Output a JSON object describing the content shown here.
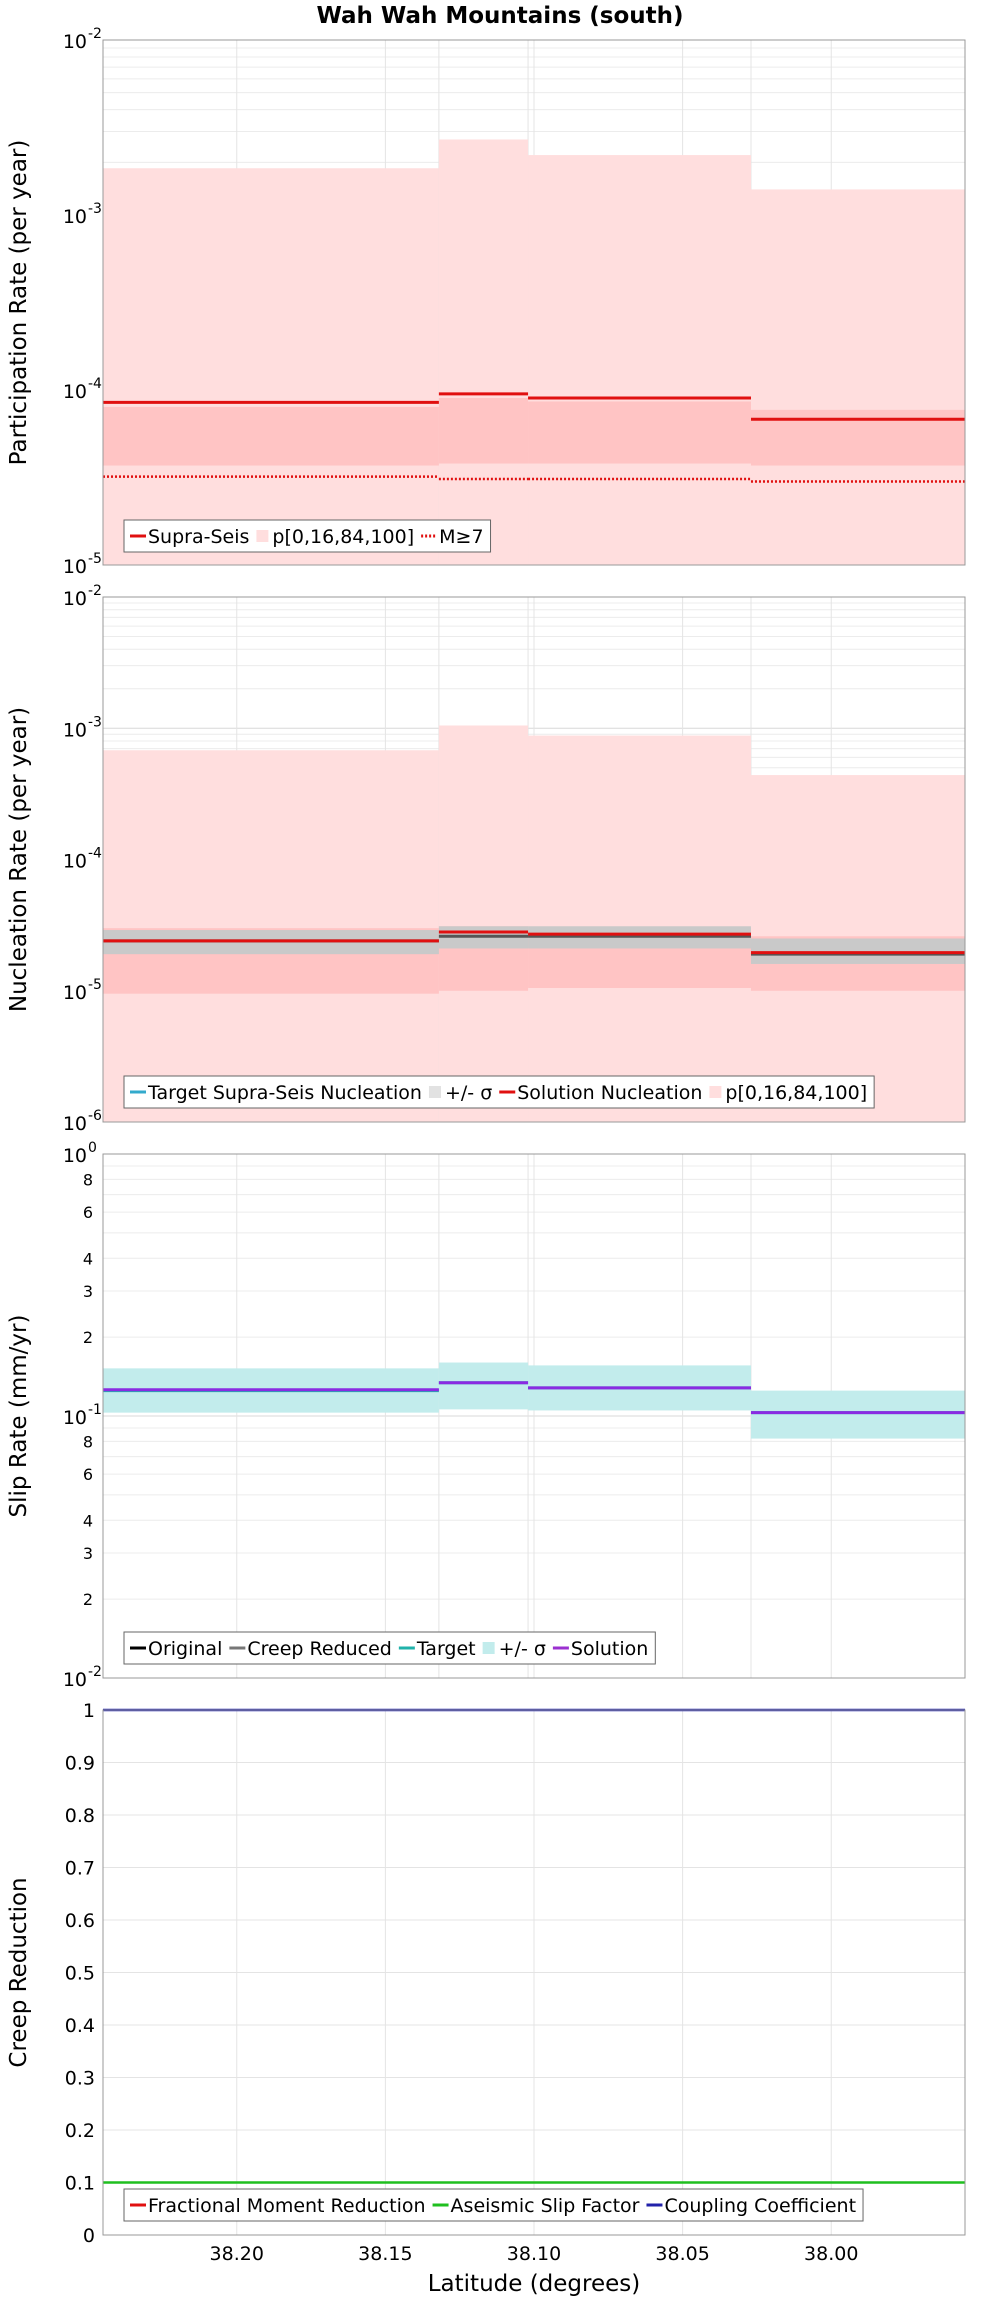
{
  "figure": {
    "title": "Wah Wah Mountains (south)",
    "xlabel": "Latitude (degrees)"
  },
  "chart_data": [
    {
      "type": "line",
      "ylabel": "Participation Rate (per year)",
      "yscale": "log",
      "ylim": [
        1e-05,
        0.01
      ],
      "y_ticks": [
        1e-05,
        0.0001,
        0.001,
        0.01
      ],
      "y_tick_labels": [
        {
          "base": "10",
          "exp": "-5"
        },
        {
          "base": "10",
          "exp": "-4"
        },
        {
          "base": "10",
          "exp": "-3"
        },
        {
          "base": "10",
          "exp": "-2"
        }
      ],
      "xlim": [
        38.245,
        37.955
      ],
      "x_ticks": [
        38.2,
        38.15,
        38.1,
        38.05,
        38.0
      ],
      "x_tick_labels": [
        "38.20",
        "38.15",
        "38.10",
        "38.05",
        "38.00"
      ],
      "x_bins": [
        [
          38.245,
          38.132
        ],
        [
          38.132,
          38.102
        ],
        [
          38.102,
          38.027
        ],
        [
          38.027,
          37.955
        ]
      ],
      "bands": [
        {
          "name": "p[0,16,84,100]",
          "color": "#ffdede",
          "lower": [
            1e-05,
            1e-05,
            1e-05,
            1e-05
          ],
          "upper": [
            0.00185,
            0.0027,
            0.0022,
            0.0014
          ]
        },
        {
          "color": "#ffc4c4",
          "lower": [
            3.7e-05,
            3.8e-05,
            3.8e-05,
            3.7e-05
          ],
          "upper": [
            8e-05,
            9e-05,
            8.6e-05,
            7.7e-05
          ]
        }
      ],
      "series": [
        {
          "name": "Supra-Seis",
          "color": "#e01010",
          "style": "solid",
          "values": [
            8.5e-05,
            9.5e-05,
            9e-05,
            6.8e-05
          ]
        },
        {
          "name": "M≥7",
          "color": "#e01010",
          "style": "dotted",
          "values": [
            3.2e-05,
            3.1e-05,
            3.1e-05,
            3e-05
          ]
        }
      ],
      "legend": [
        {
          "label": "Supra-Seis",
          "kind": "line",
          "color": "#e01010"
        },
        {
          "label": "p[0,16,84,100]",
          "kind": "band",
          "color": "#ffdede"
        },
        {
          "label": "M≥7",
          "kind": "dotted",
          "color": "#e01010"
        }
      ],
      "legend_position": "bottom-left",
      "grid": true
    },
    {
      "type": "line",
      "ylabel": "Nucleation Rate (per year)",
      "yscale": "log",
      "ylim": [
        1e-06,
        0.01
      ],
      "y_ticks": [
        1e-06,
        1e-05,
        0.0001,
        0.001,
        0.01
      ],
      "y_tick_labels": [
        {
          "base": "10",
          "exp": "-6"
        },
        {
          "base": "10",
          "exp": "-5"
        },
        {
          "base": "10",
          "exp": "-4"
        },
        {
          "base": "10",
          "exp": "-3"
        },
        {
          "base": "10",
          "exp": "-2"
        }
      ],
      "xlim": [
        38.245,
        37.955
      ],
      "x_bins": [
        [
          38.245,
          38.132
        ],
        [
          38.132,
          38.102
        ],
        [
          38.102,
          38.027
        ],
        [
          38.027,
          37.955
        ]
      ],
      "bands": [
        {
          "name": "p[0,16,84,100]",
          "color": "#ffdede",
          "lower": [
            1e-06,
            1e-06,
            1e-06,
            1e-06
          ],
          "upper": [
            0.00068,
            0.00105,
            0.00088,
            0.00044
          ]
        },
        {
          "color": "#ffc4c4",
          "lower": [
            9.5e-06,
            1e-05,
            1.05e-05,
            1e-05
          ],
          "upper": [
            3e-05,
            3.1e-05,
            3e-05,
            2.6e-05
          ]
        },
        {
          "name": "+/- σ",
          "color": "#c9c9c9",
          "lower": [
            1.9e-05,
            2.1e-05,
            2.1e-05,
            1.6e-05
          ],
          "upper": [
            2.9e-05,
            3.1e-05,
            3.1e-05,
            2.5e-05
          ]
        }
      ],
      "series": [
        {
          "name": "Target Supra-Seis Nucleation",
          "color": "#555555",
          "style": "solid",
          "values": [
            2.4e-05,
            2.6e-05,
            2.6e-05,
            1.9e-05
          ]
        },
        {
          "name": "Solution Nucleation",
          "color": "#e01010",
          "style": "solid",
          "values": [
            2.4e-05,
            2.8e-05,
            2.7e-05,
            1.95e-05
          ]
        }
      ],
      "legend": [
        {
          "label": "Target Supra-Seis Nucleation",
          "kind": "line",
          "color": "#33aacc"
        },
        {
          "label": "+/- σ",
          "kind": "band",
          "color": "#e2e2e2"
        },
        {
          "label": "Solution Nucleation",
          "kind": "line",
          "color": "#e01010"
        },
        {
          "label": "p[0,16,84,100]",
          "kind": "band",
          "color": "#ffdede"
        }
      ],
      "legend_position": "bottom-left",
      "grid": true
    },
    {
      "type": "line",
      "ylabel": "Slip Rate (mm/yr)",
      "yscale": "log",
      "ylim": [
        0.01,
        1
      ],
      "y_ticks": [
        0.01,
        0.1,
        1
      ],
      "y_tick_labels": [
        {
          "base": "10",
          "exp": "-2"
        },
        {
          "base": "10",
          "exp": "-1"
        },
        {
          "base": "10",
          "exp": "0"
        }
      ],
      "y_minor_ticks": [
        0.02,
        0.03,
        0.04,
        0.06,
        0.08,
        0.2,
        0.3,
        0.4,
        0.6,
        0.8
      ],
      "y_minor_labels": [
        "2",
        "3",
        "4",
        "6",
        "8",
        "2",
        "3",
        "4",
        "6",
        "8"
      ],
      "xlim": [
        38.245,
        37.955
      ],
      "x_bins": [
        [
          38.245,
          38.132
        ],
        [
          38.132,
          38.102
        ],
        [
          38.102,
          38.027
        ],
        [
          38.027,
          37.955
        ]
      ],
      "bands": [
        {
          "name": "+/- σ",
          "color": "#c2ecec",
          "lower": [
            0.103,
            0.106,
            0.105,
            0.082
          ],
          "upper": [
            0.152,
            0.16,
            0.156,
            0.125
          ]
        }
      ],
      "series": [
        {
          "name": "Target",
          "color": "#20b2aa",
          "style": "solid",
          "values": [
            0.125,
            0.134,
            0.128,
            0.103
          ]
        },
        {
          "name": "Solution",
          "color": "#8a2be2",
          "style": "solid",
          "values": [
            0.126,
            0.134,
            0.128,
            0.103
          ]
        }
      ],
      "legend": [
        {
          "label": "Original",
          "kind": "line",
          "color": "#000000"
        },
        {
          "label": "Creep Reduced",
          "kind": "line",
          "color": "#777777"
        },
        {
          "label": "Target",
          "kind": "line",
          "color": "#20b2aa"
        },
        {
          "label": "+/- σ",
          "kind": "band",
          "color": "#c2ecec"
        },
        {
          "label": "Solution",
          "kind": "line",
          "color": "#9b30d0"
        }
      ],
      "legend_position": "bottom-left",
      "grid": true
    },
    {
      "type": "line",
      "ylabel": "Creep Reduction",
      "yscale": "linear",
      "ylim": [
        0,
        1
      ],
      "y_ticks": [
        0,
        0.1,
        0.2,
        0.3,
        0.4,
        0.5,
        0.6,
        0.7,
        0.8,
        0.9,
        1
      ],
      "y_tick_labels": [
        "0",
        "0.1",
        "0.2",
        "0.3",
        "0.4",
        "0.5",
        "0.6",
        "0.7",
        "0.8",
        "0.9",
        "1"
      ],
      "xlim": [
        38.245,
        37.955
      ],
      "x_ticks": [
        38.2,
        38.15,
        38.1,
        38.05,
        38.0
      ],
      "x_tick_labels": [
        "38.20",
        "38.15",
        "38.10",
        "38.05",
        "38.00"
      ],
      "series": [
        {
          "name": "Aseismic Slip Factor",
          "color": "#1fbf1f",
          "style": "solid",
          "values": [
            0.1,
            0.1
          ]
        },
        {
          "name": "Coupling Coefficient",
          "color": "#2222aa",
          "style": "solid",
          "values": [
            1,
            1
          ]
        }
      ],
      "legend": [
        {
          "label": "Fractional Moment Reduction",
          "kind": "line",
          "color": "#e01010"
        },
        {
          "label": "Aseismic Slip Factor",
          "kind": "line",
          "color": "#1fbf1f"
        },
        {
          "label": "Coupling Coefficient",
          "kind": "line",
          "color": "#2222aa"
        }
      ],
      "legend_position": "bottom-left",
      "grid": true
    }
  ]
}
